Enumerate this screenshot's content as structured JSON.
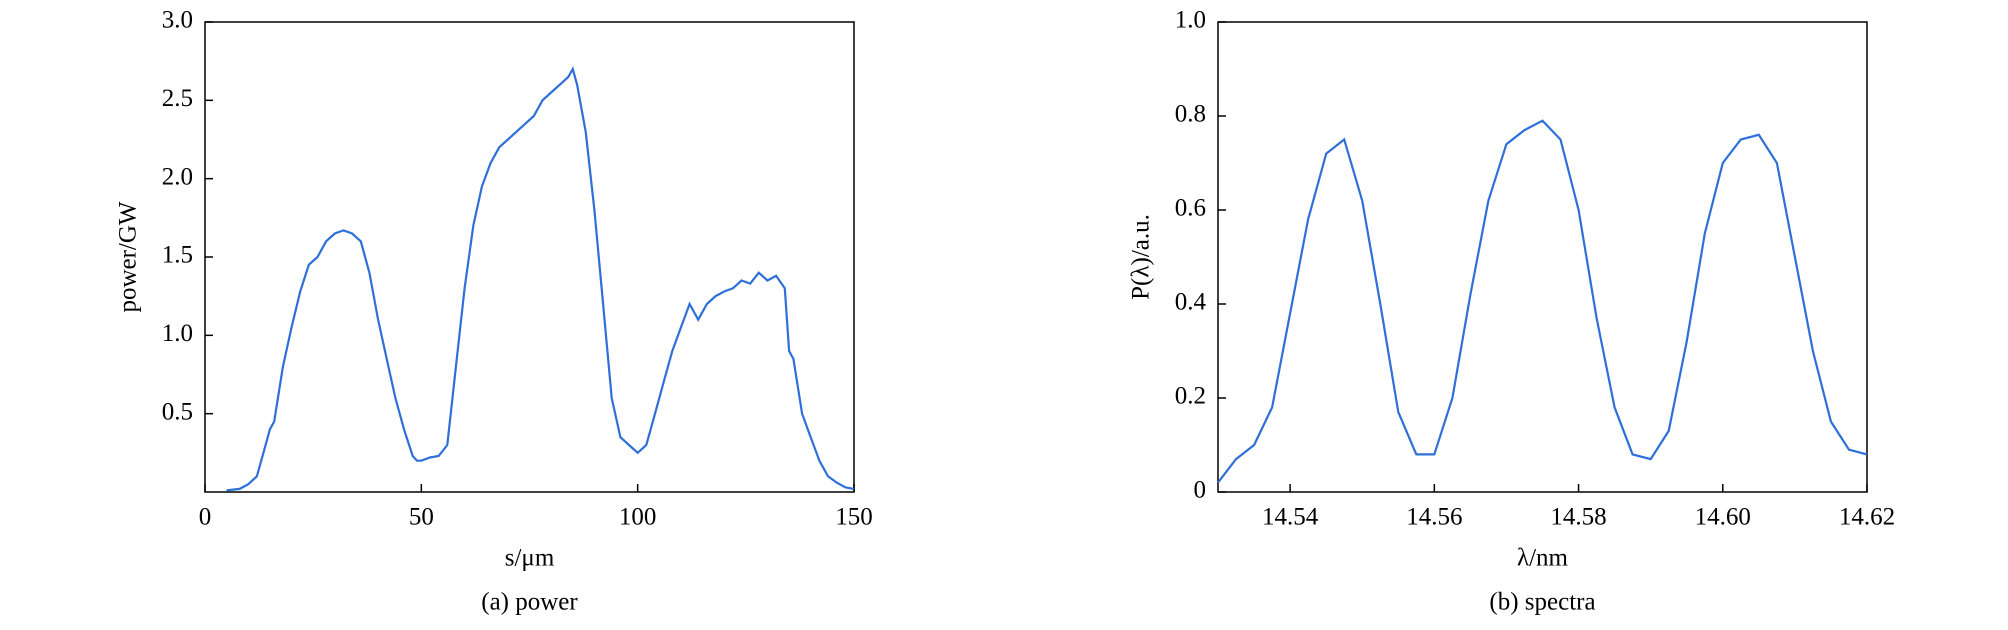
{
  "chart_data": [
    {
      "type": "line",
      "caption": "(a) power",
      "xlabel": "s/μm",
      "ylabel": "power/GW",
      "xlim": [
        0,
        150
      ],
      "ylim": [
        0,
        3
      ],
      "xticks": [
        0,
        50,
        100,
        150
      ],
      "yticks": [
        0.5,
        {
          "value": 1,
          "label": "1.0"
        },
        1.5,
        {
          "value": 2,
          "label": "2.0"
        },
        2.5,
        {
          "value": 3,
          "label": "3.0"
        }
      ],
      "x": [
        5,
        8,
        10,
        12,
        14,
        15,
        16,
        18,
        20,
        22,
        24,
        26,
        28,
        30,
        32,
        34,
        36,
        38,
        40,
        42,
        44,
        46,
        48,
        49,
        50,
        52,
        54,
        56,
        58,
        60,
        62,
        64,
        66,
        68,
        70,
        72,
        74,
        76,
        78,
        80,
        82,
        84,
        85,
        86,
        88,
        90,
        92,
        94,
        96,
        98,
        100,
        102,
        104,
        106,
        108,
        110,
        112,
        114,
        116,
        118,
        120,
        122,
        124,
        126,
        128,
        130,
        132,
        134,
        135,
        136,
        138,
        140,
        142,
        144,
        146,
        148,
        150
      ],
      "series": [
        {
          "color": "#2e6fd8",
          "values": [
            0.01,
            0.02,
            0.05,
            0.1,
            0.3,
            0.4,
            0.45,
            0.8,
            1.05,
            1.28,
            1.45,
            1.5,
            1.6,
            1.65,
            1.67,
            1.65,
            1.6,
            1.4,
            1.1,
            0.85,
            0.6,
            0.4,
            0.23,
            0.2,
            0.2,
            0.22,
            0.23,
            0.3,
            0.8,
            1.3,
            1.7,
            1.95,
            2.1,
            2.2,
            2.25,
            2.3,
            2.35,
            2.4,
            2.5,
            2.55,
            2.6,
            2.65,
            2.7,
            2.6,
            2.3,
            1.8,
            1.2,
            0.6,
            0.35,
            0.3,
            0.25,
            0.3,
            0.5,
            0.7,
            0.9,
            1.05,
            1.2,
            1.1,
            1.2,
            1.25,
            1.28,
            1.3,
            1.35,
            1.33,
            1.4,
            1.35,
            1.38,
            1.3,
            0.9,
            0.85,
            0.5,
            0.35,
            0.2,
            0.1,
            0.06,
            0.03,
            0.02
          ]
        }
      ]
    },
    {
      "type": "line",
      "caption": "(b) spectra",
      "xlabel": "λ/nm",
      "ylabel": "P(λ)/a.u.",
      "xlim": [
        14.53,
        14.62
      ],
      "ylim": [
        0,
        1
      ],
      "xticks": [
        14.54,
        14.56,
        14.58,
        {
          "value": 14.6,
          "label": "14.60"
        },
        14.62
      ],
      "yticks": [
        0,
        0.2,
        0.4,
        0.6,
        0.8,
        {
          "value": 1,
          "label": "1.0"
        }
      ],
      "x": [
        14.53,
        14.5325,
        14.535,
        14.5375,
        14.54,
        14.5425,
        14.545,
        14.5475,
        14.55,
        14.5525,
        14.555,
        14.5575,
        14.56,
        14.5625,
        14.565,
        14.5675,
        14.57,
        14.5725,
        14.575,
        14.5775,
        14.58,
        14.5825,
        14.585,
        14.5875,
        14.59,
        14.5925,
        14.595,
        14.5975,
        14.6,
        14.6025,
        14.605,
        14.6075,
        14.61,
        14.6125,
        14.615,
        14.6175,
        14.62
      ],
      "series": [
        {
          "color": "#2e6fd8",
          "values": [
            0.02,
            0.07,
            0.1,
            0.18,
            0.38,
            0.58,
            0.72,
            0.75,
            0.62,
            0.4,
            0.17,
            0.08,
            0.08,
            0.2,
            0.42,
            0.62,
            0.74,
            0.77,
            0.79,
            0.75,
            0.6,
            0.37,
            0.18,
            0.08,
            0.07,
            0.13,
            0.32,
            0.55,
            0.7,
            0.75,
            0.76,
            0.7,
            0.5,
            0.3,
            0.15,
            0.09,
            0.08
          ]
        }
      ]
    }
  ]
}
